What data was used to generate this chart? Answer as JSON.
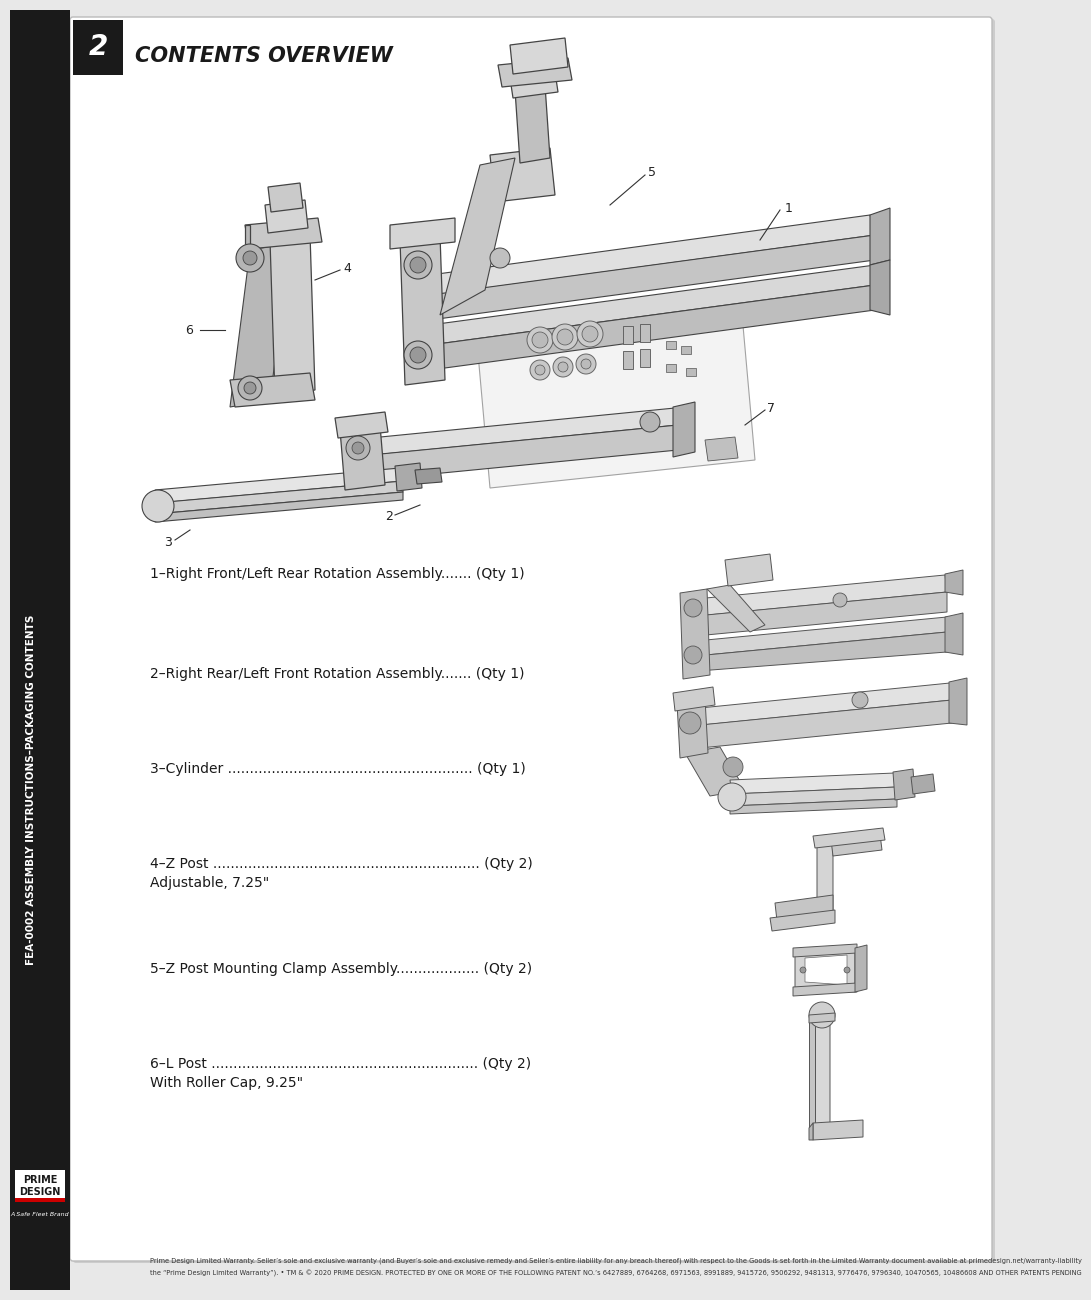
{
  "page_number": "2",
  "title": "CONTENTS OVERVIEW",
  "sidebar_text": "FEA-0002 ASSEMBLY INSTRUCTIONS–PACKAGING CONTENTS",
  "brand_name": "PRIME DESIGN",
  "brand_tagline": "A Safe Fleet Brand",
  "items": [
    {
      "text": "1–Right Front/Left Rear Rotation Assembly....... (Qty 1)",
      "subtext": ""
    },
    {
      "text": "2–Right Rear/Left Front Rotation Assembly....... (Qty 1)",
      "subtext": ""
    },
    {
      "text": "3–Cylinder ........................................................ (Qty 1)",
      "subtext": ""
    },
    {
      "text": "4–Z Post ............................................................. (Qty 2)",
      "subtext": "     Adjustable, 7.25\""
    },
    {
      "text": "5–Z Post Mounting Clamp Assembly................... (Qty 2)",
      "subtext": ""
    },
    {
      "text": "6–L Post ............................................................. (Qty 2)",
      "subtext": "     With Roller Cap, 9.25\""
    }
  ],
  "footer_line1": "Prime Design Limited Warranty. Seller’s sole and exclusive warranty (and Buyer’s sole and exclusive remedy and Seller’s entire liability for any breach thereof) with respect to the Goods is set forth in the Limited Warranty document available at primedesign.net/warranty-liability",
  "footer_line2": "the “Prime Design Limited Warranty”). • TM & © 2020 PRIME DESIGN. PROTECTED BY ONE OR MORE OF THE FOLLOWING PATENT NO.’s 6427889, 6764268, 6971563, 8991889, 9415726, 9506292, 9481313, 9776476, 9796340, 10470565, 10486608 AND OTHER PATENTS PENDING",
  "bg_color": "#ffffff",
  "sidebar_bg": "#1a1a1a",
  "border_color": "#bbbbbb",
  "text_color": "#1a1a1a",
  "page_bg": "#e8e8e8",
  "line_color": "#555555",
  "part_face": "#e8e8e8",
  "part_dark": "#c0c0c0",
  "part_edge": "#444444"
}
